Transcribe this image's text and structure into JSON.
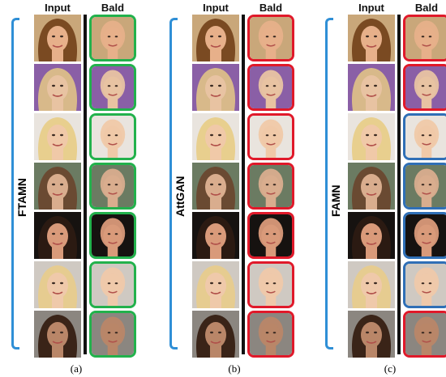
{
  "panels": [
    {
      "method": "FTAMN",
      "caption": "(a)",
      "input_header": "Input",
      "output_header": "Bald",
      "frames": [
        "green",
        "green",
        "green",
        "green",
        "green",
        "green",
        "green"
      ]
    },
    {
      "method": "AttGAN",
      "caption": "(b)",
      "input_header": "Input",
      "output_header": "Bald",
      "frames": [
        "red",
        "red",
        "red",
        "red",
        "red",
        "red",
        "red"
      ]
    },
    {
      "method": "FAMN",
      "caption": "(c)",
      "input_header": "Input",
      "output_header": "Bald",
      "frames": [
        "red",
        "red",
        "blue",
        "blue",
        "blue",
        "blue",
        "red"
      ]
    }
  ],
  "colors": {
    "green": "#22b14c",
    "red": "#e0192a",
    "blue": "#2f6fb6",
    "bracket": "#2f8fd6"
  },
  "faces": [
    {
      "bg": "#c9a77a",
      "hair": "#7a4a22",
      "skin": "#e7b08a"
    },
    {
      "bg": "#8a5fa6",
      "hair": "#d8b98a",
      "skin": "#e8c3a2"
    },
    {
      "bg": "#e9e4de",
      "hair": "#e8cf8e",
      "skin": "#f0c9a8"
    },
    {
      "bg": "#6b7b62",
      "hair": "#6a4a32",
      "skin": "#d9ad8e"
    },
    {
      "bg": "#161210",
      "hair": "#2b1a12",
      "skin": "#d99a7a"
    },
    {
      "bg": "#cfc9c2",
      "hair": "#e6cc90",
      "skin": "#efc9aa"
    },
    {
      "bg": "#8b8680",
      "hair": "#3a2418",
      "skin": "#b98668"
    }
  ]
}
